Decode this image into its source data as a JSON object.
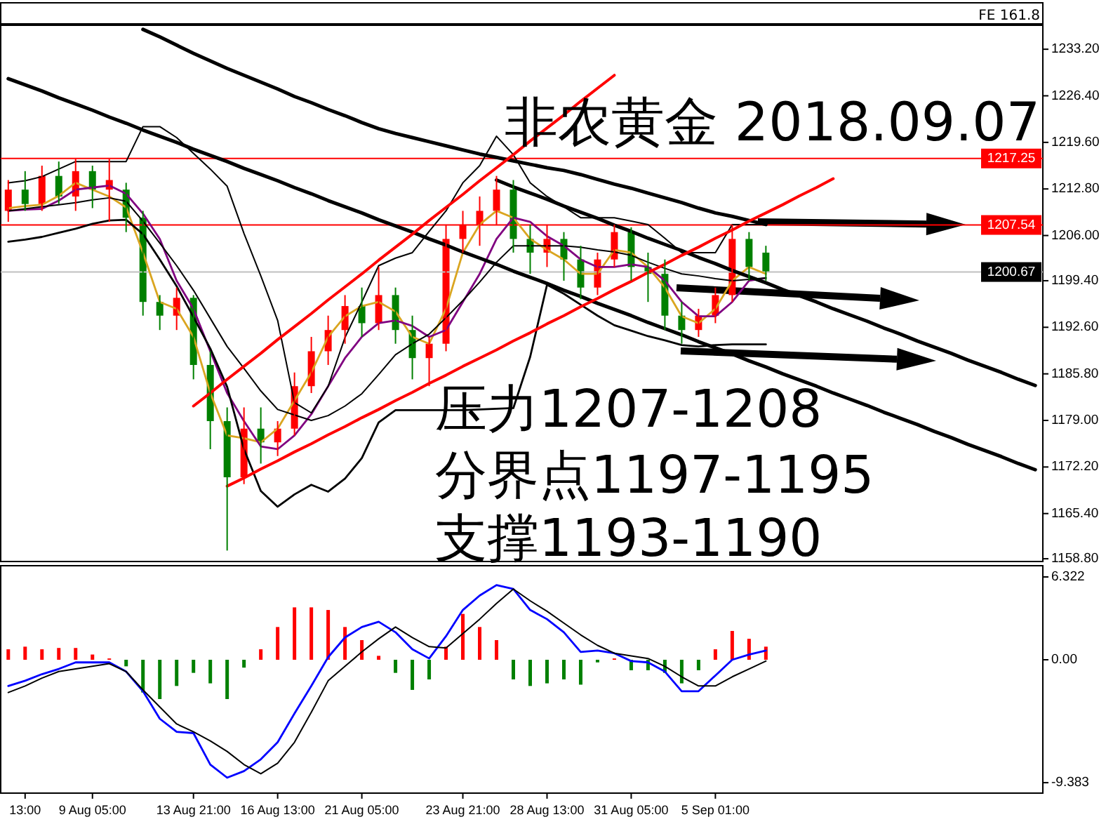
{
  "chart_data": [
    {
      "type": "candlestick",
      "title": "非农黄金 2018.09.07",
      "annotations": [
        "压力1207-1208",
        "分界点1197-1195",
        "支撑1193-1190",
        "FE 161.8"
      ],
      "categories": [
        null,
        null,
        null,
        null,
        null,
        null,
        null,
        null,
        null,
        null,
        null,
        null,
        null,
        null,
        null,
        null,
        null,
        null,
        null,
        null,
        null,
        null,
        null,
        null,
        null,
        null,
        null,
        null,
        null,
        null,
        null,
        null,
        null,
        null,
        null,
        null,
        null,
        null,
        null,
        null,
        null,
        null,
        null,
        null,
        null,
        null,
        null,
        null,
        null,
        null,
        null,
        null,
        null,
        null,
        null,
        null,
        null,
        null,
        null,
        null,
        null,
        null
      ],
      "ohlc": [
        [
          1209.6,
          1214.1,
          1208.0,
          1212.7
        ],
        [
          1212.7,
          1215.4,
          1209.6,
          1210.6
        ],
        [
          1210.6,
          1216.2,
          1209.6,
          1214.7
        ],
        [
          1214.7,
          1216.8,
          1210.6,
          1211.7
        ],
        [
          1211.7,
          1217.2,
          1209.6,
          1215.4
        ],
        [
          1215.4,
          1216.2,
          1210.0,
          1212.7
        ],
        [
          1212.7,
          1217.2,
          1208.0,
          1214.1
        ],
        [
          1212.7,
          1213.7,
          1206.5,
          1208.6
        ],
        [
          1208.6,
          1209.6,
          1194.3,
          1196.3
        ],
        [
          1196.3,
          1197.3,
          1192.2,
          1194.3
        ],
        [
          1194.3,
          1198.4,
          1192.2,
          1196.9
        ],
        [
          1196.9,
          1197.3,
          1185.0,
          1187.1
        ],
        [
          1187.1,
          1189.1,
          1174.8,
          1178.9
        ],
        [
          1178.9,
          1180.9,
          1160.0,
          1170.7
        ],
        [
          1170.7,
          1180.9,
          1169.7,
          1177.8
        ],
        [
          1177.8,
          1180.9,
          1172.7,
          1175.8
        ],
        [
          1175.8,
          1178.9,
          1173.8,
          1177.8
        ],
        [
          1177.8,
          1186.0,
          1176.8,
          1184.0
        ],
        [
          1184.0,
          1191.2,
          1183.0,
          1189.1
        ],
        [
          1189.1,
          1194.3,
          1187.1,
          1192.2
        ],
        [
          1192.2,
          1197.3,
          1190.2,
          1195.7
        ],
        [
          1195.7,
          1198.4,
          1191.2,
          1193.2
        ],
        [
          1193.2,
          1201.4,
          1192.2,
          1197.3
        ],
        [
          1197.3,
          1198.4,
          1190.2,
          1192.2
        ],
        [
          1192.2,
          1194.3,
          1185.0,
          1188.1
        ],
        [
          1188.1,
          1191.2,
          1184.0,
          1190.2
        ],
        [
          1190.2,
          1207.6,
          1189.1,
          1205.5
        ],
        [
          1205.5,
          1209.6,
          1203.5,
          1207.6
        ],
        [
          1207.6,
          1211.7,
          1204.5,
          1209.6
        ],
        [
          1209.6,
          1214.7,
          1207.6,
          1212.7
        ],
        [
          1212.7,
          1214.1,
          1203.5,
          1205.5
        ],
        [
          1205.5,
          1207.6,
          1200.4,
          1203.5
        ],
        [
          1203.5,
          1207.6,
          1201.4,
          1205.5
        ],
        [
          1205.5,
          1206.5,
          1199.4,
          1202.5
        ],
        [
          1202.5,
          1204.5,
          1196.7,
          1198.4
        ],
        [
          1198.4,
          1203.5,
          1197.3,
          1202.5
        ],
        [
          1202.5,
          1207.6,
          1201.4,
          1206.5
        ],
        [
          1206.5,
          1207.2,
          1199.4,
          1201.4
        ],
        [
          1201.4,
          1203.5,
          1196.3,
          1200.4
        ],
        [
          1200.4,
          1202.5,
          1192.2,
          1194.3
        ],
        [
          1194.3,
          1196.3,
          1190.2,
          1192.2
        ],
        [
          1192.2,
          1195.3,
          1191.2,
          1194.3
        ],
        [
          1194.3,
          1198.4,
          1193.2,
          1197.3
        ],
        [
          1197.3,
          1207.6,
          1196.3,
          1205.5
        ],
        [
          1205.5,
          1206.5,
          1199.4,
          1201.4
        ],
        [
          1203.5,
          1204.5,
          1199.4,
          1200.67
        ],
        null,
        null,
        null,
        null,
        null,
        null,
        null,
        null,
        null,
        null,
        null,
        null,
        null,
        null,
        null,
        null
      ],
      "colors": [
        "#ff0000",
        "#008000",
        "#ff0000",
        "#008000",
        "#ff0000",
        "#008000",
        "#ff0000",
        "#008000",
        "#008000",
        "#008000",
        "#ff0000",
        "#008000",
        "#008000",
        "#008000",
        "#ff0000",
        "#008000",
        "#ff0000",
        "#ff0000",
        "#ff0000",
        "#ff0000",
        "#ff0000",
        "#008000",
        "#ff0000",
        "#008000",
        "#008000",
        "#ff0000",
        "#ff0000",
        "#ff0000",
        "#ff0000",
        "#ff0000",
        "#008000",
        "#008000",
        "#ff0000",
        "#008000",
        "#008000",
        "#ff0000",
        "#ff0000",
        "#008000",
        "#008000",
        "#008000",
        "#008000",
        "#ff0000",
        "#ff0000",
        "#ff0000",
        "#008000",
        "#008000",
        null,
        null,
        null,
        null,
        null,
        null,
        null,
        null,
        null,
        null,
        null,
        null,
        null,
        null,
        null,
        null
      ],
      "series": [
        {
          "type": "line",
          "color": "#daa520",
          "values": [
            1210.0,
            1210.3,
            1210.5,
            1211.8,
            1213.7,
            1212.7,
            1211.7,
            1210.1,
            1203.5,
            1196.3,
            1195.3,
            1191.2,
            1183.0,
            1176.8,
            1176.4,
            1175.8,
            1177.8,
            1181.9,
            1186.0,
            1191.2,
            1194.2,
            1195.7,
            1196.3,
            1194.9,
            1191.2,
            1190.2,
            1195.3,
            1203.5,
            1207.6,
            1209.6,
            1208.6,
            1205.5,
            1203.9,
            1202.5,
            1200.4,
            1200.4,
            1203.9,
            1203.5,
            1201.4,
            1198.4,
            1194.2,
            1193.2,
            1195.3,
            1199.4,
            1201.4,
            1200.4,
            null,
            null,
            null,
            null,
            null,
            null,
            null,
            null,
            null,
            null,
            null,
            null,
            null,
            null,
            null,
            null
          ]
        },
        {
          "type": "line",
          "color": "#800080",
          "values": [
            1209.6,
            1209.8,
            1209.9,
            1211.1,
            1212.7,
            1213.0,
            1213.3,
            1212.1,
            1209.2,
            1205.5,
            1199.4,
            1195.3,
            1189.1,
            1183.0,
            1178.9,
            1175.2,
            1174.8,
            1176.8,
            1179.9,
            1184.0,
            1188.1,
            1191.2,
            1193.2,
            1193.6,
            1192.8,
            1191.2,
            1192.2,
            1196.3,
            1200.4,
            1205.5,
            1208.6,
            1208.0,
            1205.9,
            1204.5,
            1202.5,
            1201.4,
            1201.4,
            1201.8,
            1201.4,
            1199.4,
            1196.3,
            1194.2,
            1194.2,
            1196.3,
            1199.4,
            1199.8,
            null,
            null,
            null,
            null,
            null,
            null,
            null,
            null,
            null,
            null,
            null,
            null,
            null,
            null,
            null,
            null
          ]
        },
        {
          "type": "line",
          "color": "#000000",
          "values": [
            1213.7,
            1214.0,
            1214.6,
            1215.7,
            1216.8,
            1216.8,
            1216.8,
            1216.8,
            1221.9,
            1221.9,
            1220.3,
            1218.0,
            1215.7,
            1213.2,
            1206.3,
            1200.1,
            1193.6,
            1181.6,
            1180.1,
            1184.0,
            1191.1,
            1196.3,
            1201.6,
            1202.7,
            1203.5,
            1206.6,
            1209.6,
            1213.7,
            1216.2,
            1220.5,
            1217.8,
            1213.7,
            1211.7,
            1210.2,
            1208.6,
            1208.6,
            1208.6,
            1208.1,
            1207.6,
            1205.6,
            1203.5,
            1203.5,
            1203.5,
            1207.6,
            1207.6,
            1207.6,
            null,
            null,
            null,
            null,
            null,
            null,
            null,
            null,
            null,
            null,
            null,
            null,
            null,
            null,
            null,
            null
          ]
        },
        {
          "type": "line",
          "color": "#000000",
          "values": [
            1209.6,
            1209.9,
            1210.2,
            1210.5,
            1210.8,
            1211.2,
            1211.5,
            1211.0,
            1208.1,
            1204.9,
            1201.6,
            1198.0,
            1193.9,
            1189.8,
            1186.6,
            1183.3,
            1180.6,
            1179.8,
            1179.0,
            1179.7,
            1181.1,
            1182.9,
            1185.7,
            1188.6,
            1190.2,
            1191.6,
            1194.0,
            1196.5,
            1199.2,
            1202.1,
            1204.5,
            1204.5,
            1204.5,
            1204.5,
            1204.3,
            1203.9,
            1203.6,
            1203.1,
            1202.1,
            1201.2,
            1200.4,
            1200.1,
            1199.7,
            1199.4,
            1199.6,
            1199.8,
            null,
            null,
            null,
            null,
            null,
            null,
            null,
            null,
            null,
            null,
            null,
            null,
            null,
            null,
            null,
            null
          ]
        },
        {
          "type": "line",
          "color": "#000000",
          "values": [
            1205.1,
            1205.4,
            1205.8,
            1206.4,
            1207.0,
            1207.7,
            1208.2,
            1208.3,
            1206.2,
            1202.5,
            1198.6,
            1194.1,
            1189.5,
            1183.9,
            1174.8,
            1168.7,
            1166.4,
            1168.2,
            1169.6,
            1168.6,
            1170.5,
            1173.5,
            1178.7,
            1180.5,
            1180.5,
            1180.5,
            1180.5,
            1180.5,
            1180.6,
            1180.7,
            1180.8,
            1188.3,
            1198.8,
            1197.5,
            1195.9,
            1194.3,
            1192.9,
            1192.1,
            1191.3,
            1190.7,
            1190.0,
            1189.8,
            1190.0,
            1190.1,
            1190.1,
            1190.1,
            null,
            null,
            null,
            null,
            null,
            null,
            null,
            null,
            null,
            null,
            null,
            null,
            null,
            null,
            null,
            null
          ]
        },
        {
          "type": "line",
          "color": "#000000",
          "values": [
            null,
            null,
            null,
            null,
            null,
            null,
            null,
            null,
            1236.1,
            1235.0,
            1233.8,
            1232.6,
            1231.5,
            1230.4,
            1229.4,
            1228.4,
            1227.4,
            1226.3,
            1225.4,
            1224.4,
            1223.5,
            1222.5,
            1221.6,
            1220.9,
            1220.3,
            1219.7,
            1219.1,
            1218.5,
            1217.9,
            1217.4,
            1216.9,
            1216.4,
            1215.9,
            1215.5,
            1214.9,
            1214.2,
            1213.5,
            1212.9,
            1212.2,
            1211.5,
            1210.8,
            1210.0,
            1209.3,
            1208.8,
            1208.2,
            1207.6,
            null,
            null,
            null,
            null,
            null,
            null,
            null,
            null,
            null,
            null,
            null,
            null,
            null,
            null,
            null,
            null
          ]
        },
        {
          "type": "line",
          "color": "#000000",
          "values": [
            1228.9,
            1228.0,
            1227.1,
            1226.1,
            1225.2,
            1224.3,
            1223.3,
            1222.4,
            1221.4,
            1220.5,
            1219.6,
            1218.6,
            1217.7,
            1216.8,
            1215.8,
            1214.9,
            1214.0,
            1213.0,
            1212.1,
            1211.1,
            1210.2,
            1209.3,
            1208.3,
            1207.4,
            1206.5,
            1205.5,
            1204.6,
            1203.6,
            1202.7,
            1201.8,
            1200.8,
            1199.9,
            1199.0,
            1198.0,
            1197.1,
            1196.1,
            1195.2,
            1194.3,
            1193.3,
            1192.4,
            1191.5,
            1190.5,
            1189.6,
            1188.7,
            1187.7,
            1186.8,
            1185.8,
            1184.9,
            1184.0,
            1183.0,
            1182.1,
            1181.2,
            1180.2,
            1179.3,
            1178.4,
            1177.4,
            1176.5,
            1175.5,
            1174.6,
            1173.7,
            1172.7,
            1171.8
          ]
        },
        {
          "type": "line",
          "color": "#000000",
          "values": [
            null,
            null,
            null,
            null,
            null,
            null,
            null,
            null,
            null,
            null,
            null,
            null,
            null,
            null,
            null,
            null,
            null,
            null,
            null,
            null,
            null,
            null,
            null,
            null,
            null,
            null,
            null,
            null,
            null,
            1214.1,
            1213.1,
            1212.2,
            1211.3,
            1210.3,
            1209.4,
            1208.5,
            1207.5,
            1206.6,
            1205.6,
            1204.7,
            1203.8,
            1202.8,
            1201.9,
            1200.9,
            1200.0,
            1199.1,
            1198.1,
            1197.2,
            1196.3,
            1195.3,
            1194.4,
            1193.5,
            1192.5,
            1191.6,
            1190.6,
            1189.7,
            1188.8,
            1187.8,
            1186.9,
            1186.0,
            1185.0,
            1184.1
          ]
        },
        {
          "type": "line",
          "color": "#ff0000",
          "values": [
            null,
            null,
            null,
            null,
            null,
            null,
            null,
            null,
            null,
            null,
            null,
            1181.1,
            1183.0,
            1185.0,
            1186.9,
            1188.8,
            1190.8,
            1192.7,
            1194.6,
            1196.6,
            1198.5,
            1200.4,
            1202.4,
            1204.3,
            1206.2,
            1208.2,
            1210.1,
            1212.0,
            1214.0,
            1215.9,
            1217.8,
            1219.8,
            1221.7,
            1223.6,
            1225.6,
            1227.5,
            1229.4,
            null,
            null,
            null,
            null,
            null,
            null,
            null,
            null,
            null,
            null,
            null,
            null,
            null,
            null,
            null,
            null,
            null,
            null,
            null,
            null,
            null,
            null,
            null,
            null,
            null
          ]
        },
        {
          "type": "line",
          "color": "#ff0000",
          "values": [
            null,
            null,
            null,
            null,
            null,
            null,
            null,
            null,
            null,
            null,
            null,
            null,
            null,
            1169.4,
            1170.6,
            1171.9,
            1173.1,
            1174.4,
            1175.6,
            1176.9,
            1178.1,
            1179.4,
            1180.6,
            1181.9,
            1183.1,
            1184.4,
            1185.6,
            1186.9,
            1188.1,
            1189.3,
            1190.6,
            1191.8,
            1193.1,
            1194.3,
            1195.6,
            1196.8,
            1198.1,
            1199.3,
            1200.6,
            1201.8,
            1203.1,
            1204.3,
            1205.6,
            1206.8,
            1208.1,
            1209.3,
            1210.5,
            1211.8,
            1213.0,
            1214.3,
            null,
            null,
            null,
            null,
            null,
            null,
            null,
            null,
            null,
            null,
            null,
            null
          ]
        }
      ],
      "ref_lines": [
        {
          "axis": "y",
          "value": 1217.25,
          "label": "1217.25",
          "color": "#ff0000"
        },
        {
          "axis": "y",
          "value": 1207.54,
          "label": "1207.54",
          "color": "#ff0000"
        },
        {
          "axis": "y",
          "value": 1200.67,
          "label": "1200.67",
          "color": "#c0c0c0"
        }
      ],
      "ylim": [
        1158.4,
        1236.7
      ],
      "yticks": [
        {
          "value": 1233.2,
          "label": "1233.20"
        },
        {
          "value": 1226.4,
          "label": "1226.40"
        },
        {
          "value": 1219.6,
          "label": "1219.60"
        },
        {
          "value": 1212.8,
          "label": "1212.80"
        },
        {
          "value": 1206,
          "label": "1206.00"
        },
        {
          "value": 1199.4,
          "label": "1199.40"
        },
        {
          "value": 1192.6,
          "label": "1192.60"
        },
        {
          "value": 1185.8,
          "label": "1185.80"
        },
        {
          "value": 1179,
          "label": "1179.00"
        },
        {
          "value": 1172.2,
          "label": "1172.20"
        },
        {
          "value": 1165.4,
          "label": "1165.40"
        },
        {
          "value": 1158.8,
          "label": "1158.80"
        }
      ],
      "tick_labels": "y"
    },
    {
      "type": "bar",
      "categories": [
        null,
        "13:00",
        null,
        null,
        null,
        "9 Aug 05:00",
        null,
        null,
        null,
        null,
        null,
        "13 Aug 21:00",
        null,
        null,
        null,
        null,
        "16 Aug 13:00",
        null,
        null,
        null,
        null,
        "21 Aug 05:00",
        null,
        null,
        null,
        null,
        null,
        "23 Aug 21:00",
        null,
        null,
        null,
        null,
        "28 Aug 13:00",
        null,
        null,
        null,
        null,
        "31 Aug 05:00",
        null,
        null,
        null,
        null,
        "5 Sep 01:00",
        null,
        null,
        null,
        null,
        null,
        null,
        null,
        null,
        null,
        null,
        null,
        null,
        null,
        null,
        null,
        null,
        null,
        null,
        null
      ],
      "series": [
        {
          "type": "bar",
          "values": [
            0.8,
            1.0,
            0.8,
            0.9,
            0.9,
            0.4,
            0.1,
            -0.5,
            -2.5,
            -3.0,
            -2.0,
            -1.0,
            -1.8,
            -3.0,
            -0.6,
            0.8,
            2.5,
            4.0,
            4.0,
            3.8,
            2.5,
            1.5,
            0.3,
            -1.0,
            -2.3,
            -1.5,
            1.0,
            3.5,
            2.5,
            1.5,
            -1.5,
            -2.0,
            -1.8,
            -1.5,
            -1.9,
            -0.2,
            0.1,
            -0.8,
            -0.8,
            -1.0,
            -1.8,
            -0.8,
            0.8,
            2.2,
            1.6,
            1.0,
            null,
            null,
            null,
            null,
            null,
            null,
            null,
            null,
            null,
            null,
            null,
            null,
            null,
            null,
            null,
            null
          ],
          "colors": [
            "#ff0000",
            "#ff0000",
            "#ff0000",
            "#ff0000",
            "#ff0000",
            "#ff0000",
            "#ff0000",
            "#008000",
            "#008000",
            "#008000",
            "#008000",
            "#008000",
            "#008000",
            "#008000",
            "#008000",
            "#ff0000",
            "#ff0000",
            "#ff0000",
            "#ff0000",
            "#ff0000",
            "#ff0000",
            "#ff0000",
            "#ff0000",
            "#008000",
            "#008000",
            "#008000",
            "#ff0000",
            "#ff0000",
            "#ff0000",
            "#ff0000",
            "#008000",
            "#008000",
            "#008000",
            "#008000",
            "#008000",
            "#008000",
            "#ff0000",
            "#008000",
            "#008000",
            "#008000",
            "#008000",
            "#008000",
            "#ff0000",
            "#ff0000",
            "#ff0000",
            "#ff0000",
            null,
            null,
            null,
            null,
            null,
            null,
            null,
            null,
            null,
            null,
            null,
            null,
            null,
            null,
            null,
            null
          ]
        },
        {
          "type": "line",
          "color": "#0000ff",
          "values": [
            -2.0,
            -1.6,
            -1.1,
            -0.7,
            -0.2,
            -0.2,
            -0.2,
            -0.9,
            -2.4,
            -4.5,
            -5.5,
            -5.6,
            -8.0,
            -9.0,
            -8.5,
            -7.6,
            -6.3,
            -4.1,
            -2.0,
            0.2,
            1.7,
            2.5,
            2.9,
            2.1,
            0.8,
            0.1,
            1.8,
            3.8,
            4.9,
            5.7,
            5.4,
            3.8,
            3.1,
            2.1,
            0.6,
            0.7,
            0.5,
            -0.1,
            -0.2,
            -0.9,
            -2.4,
            -2.4,
            -1.2,
            0.0,
            0.4,
            0.7,
            null,
            null,
            null,
            null,
            null,
            null,
            null,
            null,
            null,
            null,
            null,
            null,
            null,
            null,
            null,
            null
          ]
        },
        {
          "type": "line",
          "color": "#000000",
          "values": [
            -2.5,
            -2.0,
            -1.4,
            -0.9,
            -0.7,
            -0.5,
            -0.3,
            -0.9,
            -2.3,
            -3.6,
            -4.9,
            -5.5,
            -6.2,
            -7.0,
            -8.0,
            -8.7,
            -7.9,
            -6.3,
            -4.0,
            -1.6,
            -0.5,
            0.6,
            1.6,
            2.5,
            1.7,
            1.0,
            0.9,
            2.0,
            3.1,
            4.3,
            5.4,
            4.5,
            3.7,
            2.8,
            1.9,
            1.1,
            0.5,
            0.3,
            0.1,
            -0.5,
            -1.3,
            -2.0,
            -2.0,
            -1.3,
            -0.7,
            -0.1,
            null,
            null,
            null,
            null,
            null,
            null,
            null,
            null,
            null,
            null,
            null,
            null,
            null,
            null,
            null,
            null
          ]
        }
      ],
      "ylim": [
        -10.18,
        7.18
      ],
      "yticks": [
        6.322,
        {
          "value": 0,
          "label": "0.00"
        },
        -9.383
      ]
    }
  ]
}
